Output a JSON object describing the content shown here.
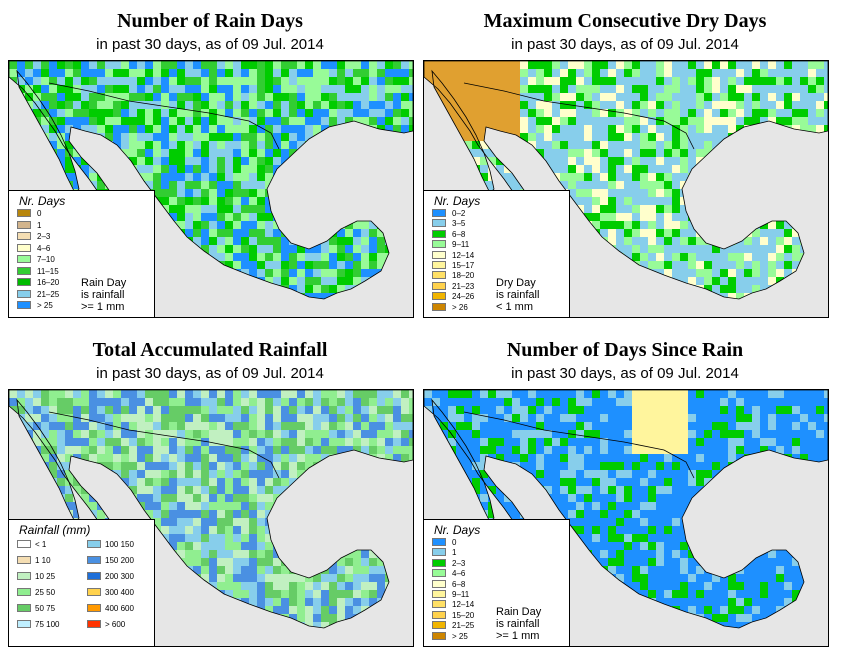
{
  "panels": [
    {
      "id": "rain-days",
      "title": "Number of Rain Days",
      "subtitle": "in past 30 days, as of  09 Jul. 2014",
      "legend": {
        "title": "Nr. Days",
        "labels": [
          "0",
          "1",
          "2–3",
          "4–6",
          "7–10",
          "11–15",
          "16–20",
          "21–25",
          "> 25"
        ],
        "colors": [
          "#b8860b",
          "#d2b48c",
          "#f5deb3",
          "#ffffcc",
          "#98fb98",
          "#32cd32",
          "#00bb00",
          "#87ceeb",
          "#1e90ff"
        ],
        "note": [
          "Rain Day",
          "is rainfall",
          ">= 1 mm"
        ]
      },
      "map_palette": [
        "#98fb98",
        "#32cd32",
        "#00cc00",
        "#87ceeb",
        "#1e90ff"
      ]
    },
    {
      "id": "dry-days",
      "title": "Maximum Consecutive Dry Days",
      "subtitle": "in past 30 days, as of  09 Jul. 2014",
      "legend": {
        "title": "Nr. Days",
        "labels": [
          "0–2",
          "3–5",
          "6–8",
          "9–11",
          "12–14",
          "15–17",
          "18–20",
          "21–23",
          "24–26",
          "> 26"
        ],
        "colors": [
          "#1e90ff",
          "#87ceeb",
          "#00cc00",
          "#98fb98",
          "#ffffcc",
          "#fff59d",
          "#ffe066",
          "#ffd24d",
          "#f0b400",
          "#cd8500"
        ],
        "note": [
          "Dry Day",
          "is rainfall",
          "< 1 mm"
        ]
      },
      "map_palette": [
        "#87ceeb",
        "#00cc00",
        "#98fb98",
        "#ffffcc",
        "#87ceeb"
      ]
    },
    {
      "id": "total-rainfall",
      "title": "Total Accumulated Rainfall",
      "subtitle": "in past 30 days, as of  09 Jul. 2014",
      "legend": {
        "title": "Rainfall (mm)",
        "labels_left": [
          "< 1",
          "1   10",
          "10   25",
          "25   50",
          "50   75",
          "75  100"
        ],
        "colors_left": [
          "#ffffff",
          "#f5deb3",
          "#c1f0c1",
          "#90ee90",
          "#66cc66",
          "#bfefff"
        ],
        "labels_right": [
          "100  150",
          "150  200",
          "200  300",
          "300  400",
          "400  600",
          "> 600"
        ],
        "colors_right": [
          "#87ceeb",
          "#4a90e2",
          "#1e6fd9",
          "#ffd24d",
          "#ff9900",
          "#ff3300"
        ]
      },
      "map_palette": [
        "#90ee90",
        "#66cc66",
        "#87ceeb",
        "#4a90e2",
        "#c1f0c1"
      ]
    },
    {
      "id": "days-since-rain",
      "title": "Number of Days Since Rain",
      "subtitle": "in past 30 days, as of  09 Jul. 2014",
      "legend": {
        "title": "Nr. Days",
        "labels": [
          "0",
          "1",
          "2–3",
          "4–6",
          "6–8",
          "9–11",
          "12–14",
          "15–20",
          "21–25",
          "> 25"
        ],
        "colors": [
          "#1e90ff",
          "#87ceeb",
          "#00cc00",
          "#98fb98",
          "#ffffcc",
          "#fff59d",
          "#ffe066",
          "#ffd24d",
          "#f0b400",
          "#cd8500"
        ],
        "note": [
          "Rain Day",
          "is rainfall",
          ">= 1 mm"
        ]
      },
      "map_palette": [
        "#1e90ff",
        "#1e90ff",
        "#00cc00",
        "#87ceeb",
        "#1e90ff"
      ]
    }
  ]
}
